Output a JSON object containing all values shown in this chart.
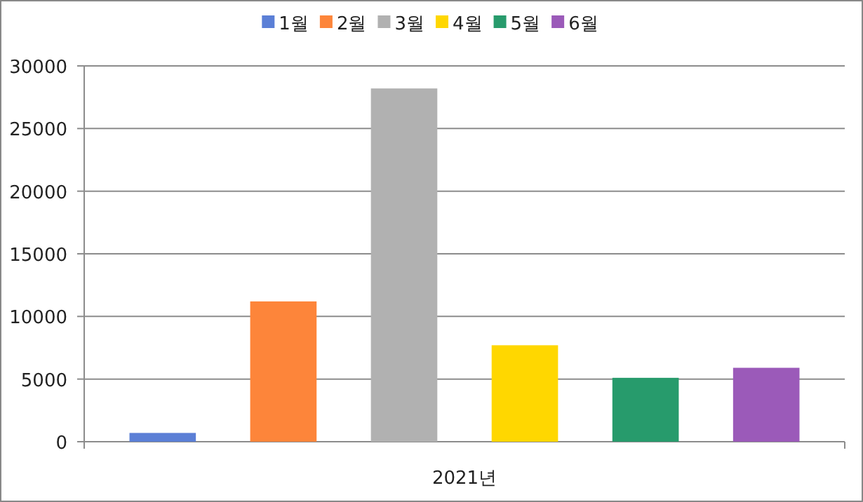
{
  "chart_data": {
    "type": "bar",
    "categories": [
      "2021년"
    ],
    "series": [
      {
        "name": "1월",
        "color": "#5b7fd6",
        "values": [
          700
        ]
      },
      {
        "name": "2월",
        "color": "#fd853a",
        "values": [
          11200
        ]
      },
      {
        "name": "3월",
        "color": "#b1b1b1",
        "values": [
          28200
        ]
      },
      {
        "name": "4월",
        "color": "#ffd700",
        "values": [
          7700
        ]
      },
      {
        "name": "5월",
        "color": "#279b6c",
        "values": [
          5100
        ]
      },
      {
        "name": "6월",
        "color": "#9b5ab9",
        "values": [
          5900
        ]
      }
    ],
    "ylim": [
      0,
      30000
    ],
    "yticks": [
      0,
      5000,
      10000,
      15000,
      20000,
      25000,
      30000
    ],
    "grid": "y",
    "legend": "top"
  }
}
